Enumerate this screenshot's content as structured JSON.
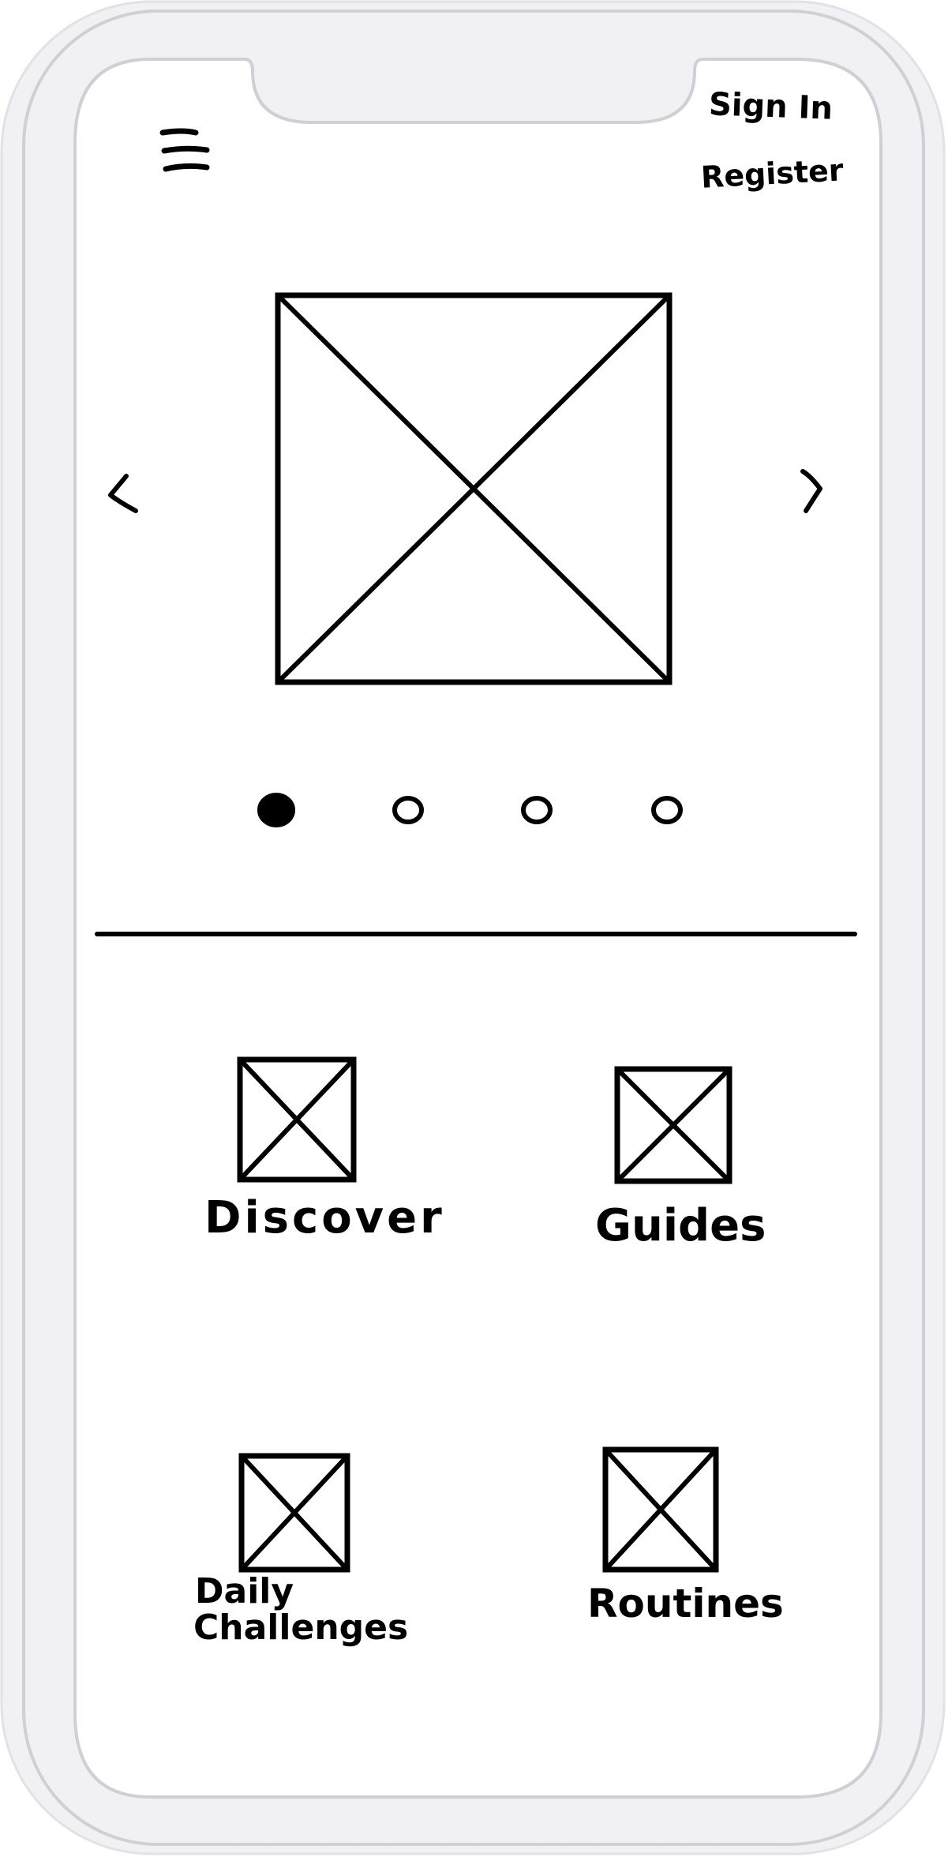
{
  "header": {
    "sign_in_label": "Sign In",
    "register_label": "Register",
    "menu_icon": "hamburger-menu-icon"
  },
  "carousel": {
    "prev_icon": "chevron-left-icon",
    "next_icon": "chevron-right-icon",
    "image_icon": "image-placeholder-icon",
    "slide_count": 4,
    "active_index": 0
  },
  "features": {
    "items": [
      {
        "label": "Discover",
        "icon": "image-placeholder-icon"
      },
      {
        "label": "Guides",
        "icon": "image-placeholder-icon"
      },
      {
        "label": "Daily",
        "label_line2": "Challenges",
        "icon": "image-placeholder-icon"
      },
      {
        "label": "Routines",
        "icon": "image-placeholder-icon"
      }
    ]
  },
  "colors": {
    "frame": "#f1f1f3",
    "frame_stroke": "#cfcfd6",
    "screen": "#ffffff",
    "ink": "#000000"
  }
}
